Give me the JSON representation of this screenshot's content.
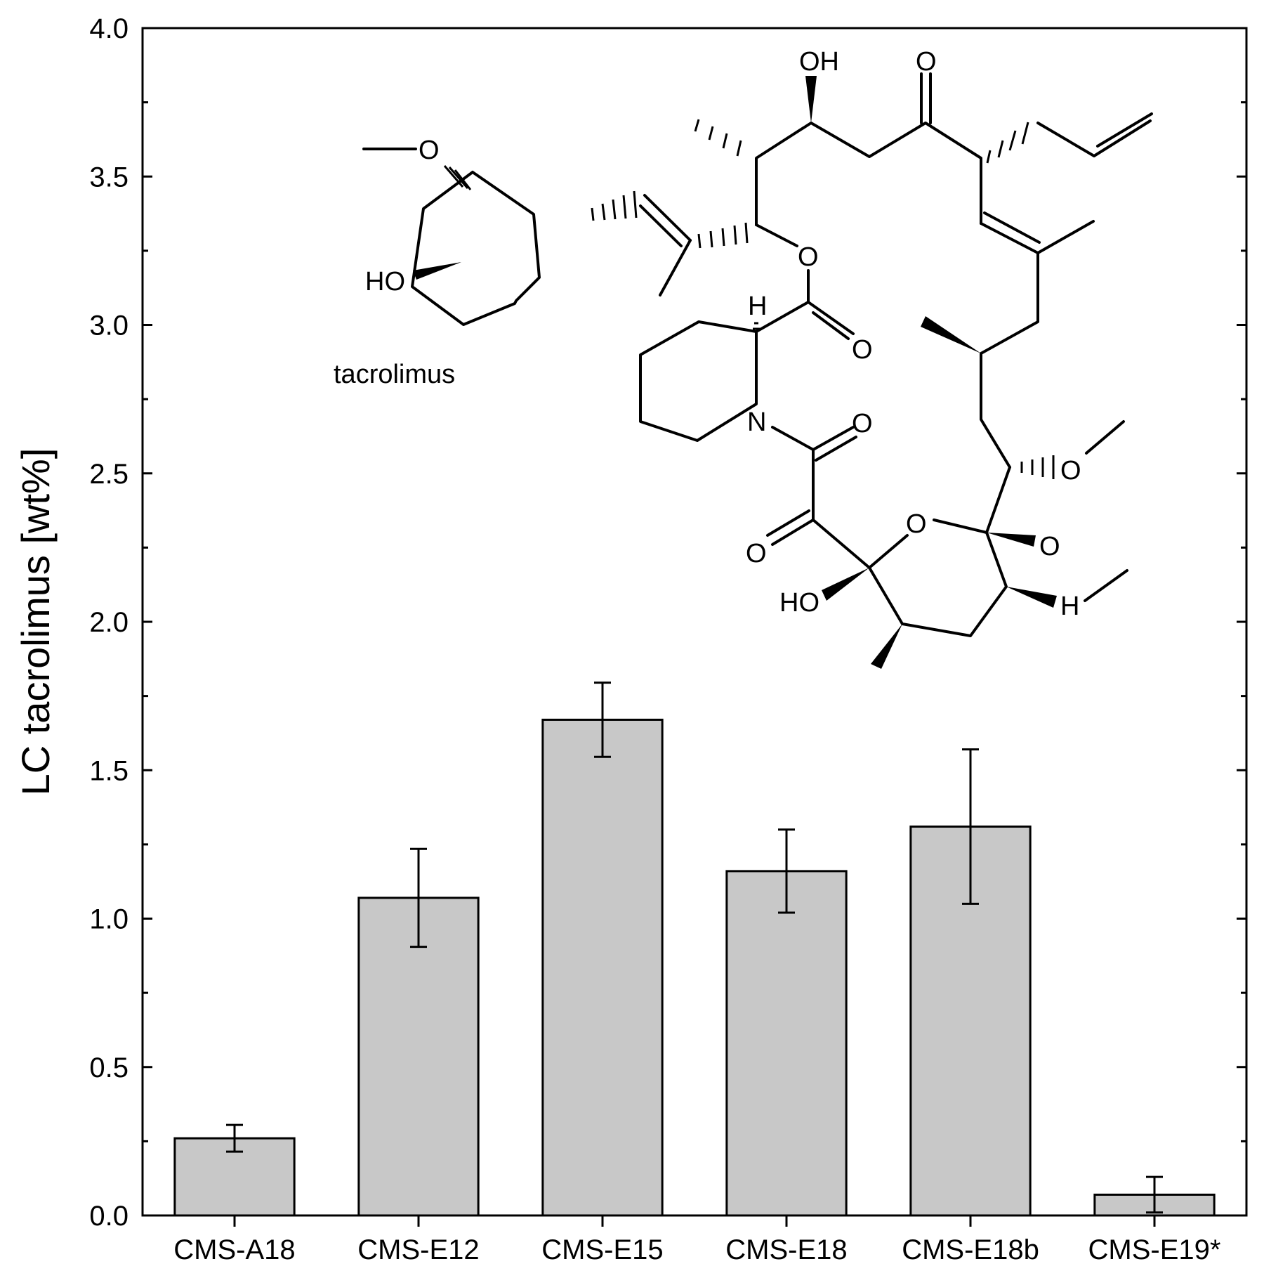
{
  "chart_data": {
    "type": "bar",
    "categories": [
      "CMS-A18",
      "CMS-E12",
      "CMS-E15",
      "CMS-E18",
      "CMS-E18b",
      "CMS-E19*"
    ],
    "values": [
      0.26,
      1.07,
      1.67,
      1.16,
      1.31,
      0.07
    ],
    "errors": [
      0.045,
      0.165,
      0.125,
      0.14,
      0.26,
      0.06
    ],
    "ylabel": "LC tacrolimus [wt%]",
    "xlabel": "",
    "ylim": [
      0.0,
      4.0
    ],
    "yticks": [
      "0.0",
      "0.5",
      "1.0",
      "1.5",
      "2.0",
      "2.5",
      "3.0",
      "3.5",
      "4.0"
    ],
    "bar_color": "#c8c8c8",
    "grid": false
  },
  "inset": {
    "compound_name": "tacrolimus",
    "atoms": [
      "O",
      "HO",
      "OH",
      "O",
      "O",
      "H",
      "O",
      "N",
      "O",
      "O",
      "O",
      "O",
      "H",
      "HO",
      "O"
    ]
  }
}
